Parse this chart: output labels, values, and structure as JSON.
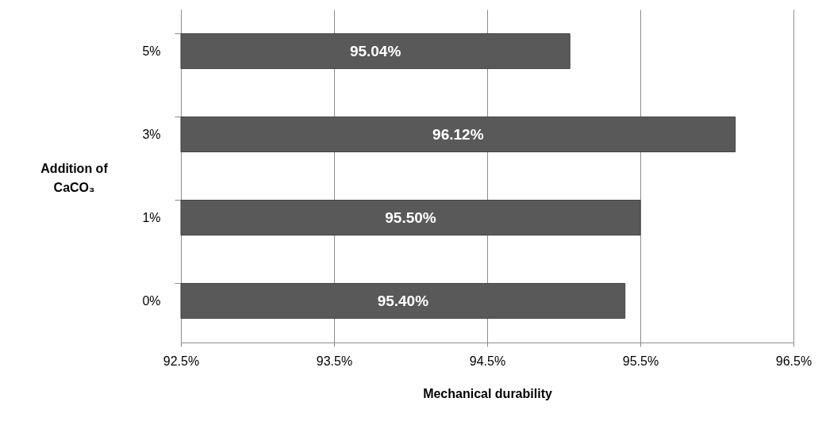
{
  "chart_data": {
    "type": "bar",
    "orientation": "horizontal",
    "xlabel": "Mechanical durability",
    "ylabel": "Addition of CaCO₃",
    "categories": [
      "5%",
      "3%",
      "1%",
      "0%"
    ],
    "values": [
      95.04,
      96.12,
      95.5,
      95.4
    ],
    "value_labels": [
      "95.04%",
      "96.12%",
      "95.50%",
      "95.40%"
    ],
    "color": "#595959",
    "xlim": [
      92.5,
      96.5
    ],
    "xticks": [
      {
        "value": 92.5,
        "label": "92.5%"
      },
      {
        "value": 93.5,
        "label": "93.5%"
      },
      {
        "value": 94.5,
        "label": "94.5%"
      },
      {
        "value": 95.5,
        "label": "95.5%"
      },
      {
        "value": 96.5,
        "label": "96.5%"
      }
    ],
    "grid": "x"
  }
}
